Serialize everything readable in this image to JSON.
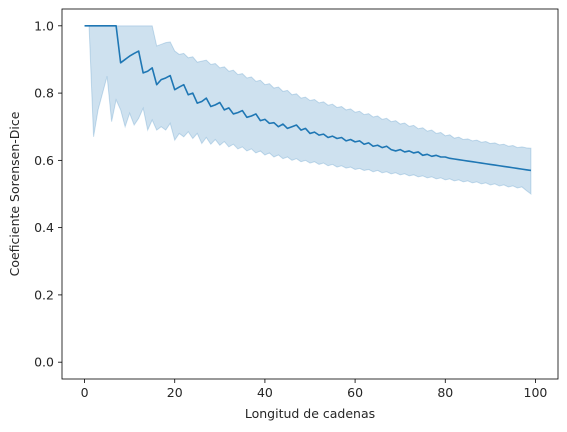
{
  "chart_data": {
    "type": "line",
    "title": "",
    "xlabel": "Longitud de cadenas",
    "ylabel": "Coeficiente Sorensen-Dice",
    "xlim": [
      -5,
      105
    ],
    "ylim": [
      -0.05,
      1.05
    ],
    "xticks": [
      0,
      20,
      40,
      60,
      80,
      100
    ],
    "xtick_labels": [
      "0",
      "20",
      "40",
      "60",
      "80",
      "100"
    ],
    "yticks": [
      0.0,
      0.2,
      0.4,
      0.6,
      0.8,
      1.0
    ],
    "ytick_labels": [
      "0.0",
      "0.2",
      "0.4",
      "0.6",
      "0.8",
      "1.0"
    ],
    "grid": false,
    "legend": null,
    "colors": {
      "line": "#1f77b4",
      "band": "#1f77b4"
    },
    "series": [
      {
        "x": [
          0,
          1,
          2,
          3,
          4,
          5,
          6,
          7,
          8,
          9,
          10,
          11,
          12,
          13,
          14,
          15,
          16,
          17,
          18,
          19,
          20,
          21,
          22,
          23,
          24,
          25,
          26,
          27,
          28,
          29,
          30,
          31,
          32,
          33,
          34,
          35,
          36,
          37,
          38,
          39,
          40,
          41,
          42,
          43,
          44,
          45,
          46,
          47,
          48,
          49,
          50,
          51,
          52,
          53,
          54,
          55,
          56,
          57,
          58,
          59,
          60,
          61,
          62,
          63,
          64,
          65,
          66,
          67,
          68,
          69,
          70,
          71,
          72,
          73,
          74,
          75,
          76,
          77,
          78,
          79,
          80,
          81,
          82,
          83,
          84,
          85,
          86,
          87,
          88,
          89,
          90,
          91,
          92,
          93,
          94,
          95,
          96,
          97,
          98,
          99
        ],
        "y": [
          1.0,
          1.0,
          1.0,
          1.0,
          1.0,
          1.0,
          1.0,
          1.0,
          0.89,
          0.9,
          0.91,
          0.918,
          0.925,
          0.86,
          0.865,
          0.875,
          0.825,
          0.84,
          0.845,
          0.852,
          0.81,
          0.818,
          0.825,
          0.795,
          0.8,
          0.77,
          0.775,
          0.785,
          0.76,
          0.765,
          0.772,
          0.75,
          0.756,
          0.738,
          0.742,
          0.748,
          0.728,
          0.732,
          0.738,
          0.718,
          0.722,
          0.71,
          0.712,
          0.7,
          0.708,
          0.695,
          0.7,
          0.705,
          0.69,
          0.695,
          0.68,
          0.684,
          0.675,
          0.678,
          0.668,
          0.672,
          0.665,
          0.668,
          0.658,
          0.662,
          0.655,
          0.658,
          0.648,
          0.652,
          0.642,
          0.645,
          0.638,
          0.642,
          0.632,
          0.628,
          0.632,
          0.625,
          0.628,
          0.622,
          0.625,
          0.615,
          0.618,
          0.612,
          0.615,
          0.61,
          0.61,
          0.606,
          0.604,
          0.602,
          0.6,
          0.598,
          0.596,
          0.594,
          0.592,
          0.59,
          0.588,
          0.586,
          0.584,
          0.582,
          0.58,
          0.578,
          0.576,
          0.574,
          0.572,
          0.57
        ],
        "ci_lower": [
          1.0,
          1.0,
          0.67,
          0.75,
          0.8,
          0.85,
          0.715,
          0.78,
          0.75,
          0.7,
          0.74,
          0.705,
          0.725,
          0.755,
          0.69,
          0.72,
          0.69,
          0.7,
          0.69,
          0.71,
          0.66,
          0.68,
          0.67,
          0.685,
          0.665,
          0.68,
          0.65,
          0.668,
          0.648,
          0.662,
          0.645,
          0.656,
          0.64,
          0.648,
          0.634,
          0.64,
          0.628,
          0.634,
          0.622,
          0.628,
          0.616,
          0.622,
          0.61,
          0.616,
          0.605,
          0.61,
          0.6,
          0.605,
          0.596,
          0.6,
          0.592,
          0.596,
          0.588,
          0.592,
          0.584,
          0.588,
          0.58,
          0.584,
          0.577,
          0.58,
          0.573,
          0.576,
          0.57,
          0.573,
          0.566,
          0.57,
          0.563,
          0.566,
          0.56,
          0.563,
          0.557,
          0.56,
          0.554,
          0.557,
          0.551,
          0.554,
          0.548,
          0.551,
          0.545,
          0.548,
          0.542,
          0.545,
          0.539,
          0.542,
          0.536,
          0.539,
          0.533,
          0.536,
          0.53,
          0.533,
          0.527,
          0.53,
          0.524,
          0.527,
          0.521,
          0.524,
          0.518,
          0.521,
          0.51,
          0.5
        ],
        "ci_upper": [
          1.0,
          1.0,
          1.0,
          1.0,
          1.0,
          1.0,
          1.0,
          1.0,
          1.0,
          1.0,
          1.0,
          1.0,
          1.0,
          1.0,
          1.0,
          1.0,
          0.94,
          0.945,
          0.95,
          0.952,
          0.925,
          0.915,
          0.918,
          0.905,
          0.908,
          0.892,
          0.895,
          0.898,
          0.885,
          0.888,
          0.875,
          0.878,
          0.865,
          0.868,
          0.855,
          0.858,
          0.845,
          0.848,
          0.835,
          0.838,
          0.825,
          0.828,
          0.815,
          0.818,
          0.805,
          0.808,
          0.795,
          0.798,
          0.785,
          0.788,
          0.778,
          0.781,
          0.771,
          0.774,
          0.764,
          0.767,
          0.757,
          0.76,
          0.75,
          0.753,
          0.743,
          0.746,
          0.736,
          0.739,
          0.729,
          0.732,
          0.722,
          0.725,
          0.715,
          0.718,
          0.708,
          0.711,
          0.701,
          0.704,
          0.694,
          0.697,
          0.687,
          0.69,
          0.68,
          0.683,
          0.673,
          0.676,
          0.666,
          0.669,
          0.662,
          0.664,
          0.658,
          0.66,
          0.654,
          0.656,
          0.65,
          0.652,
          0.646,
          0.648,
          0.642,
          0.644,
          0.638,
          0.64,
          0.637,
          0.636
        ]
      }
    ]
  }
}
